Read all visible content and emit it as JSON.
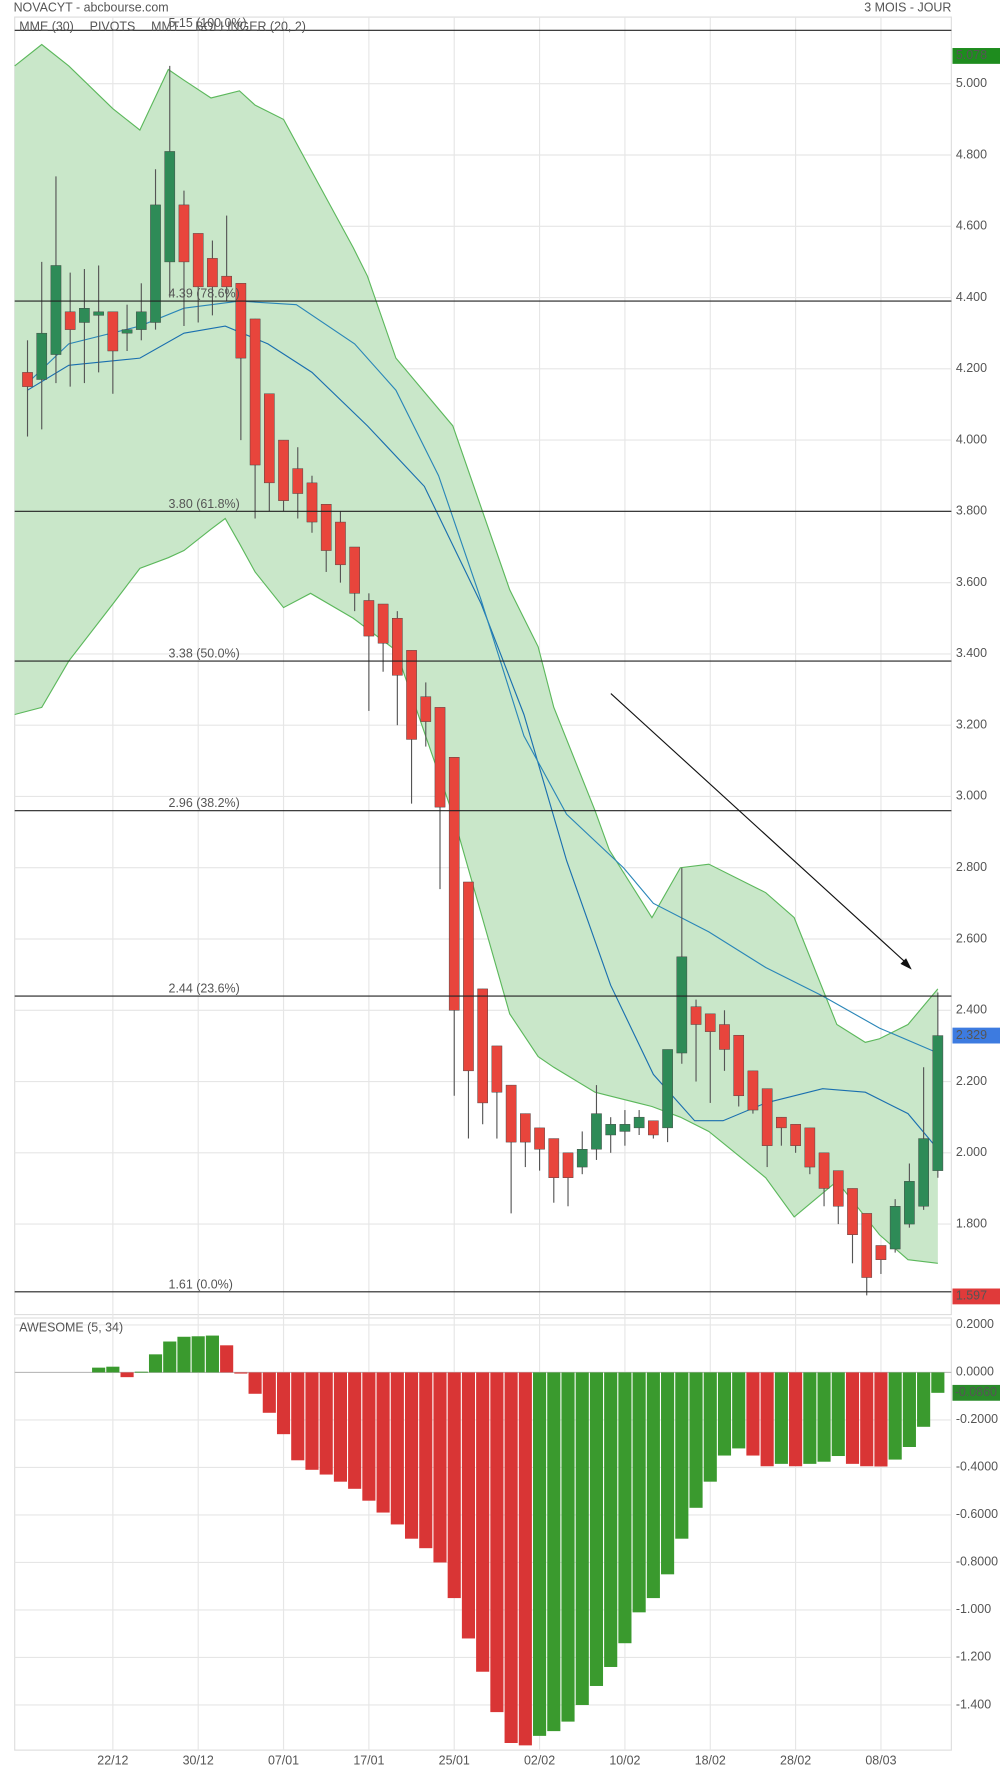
{
  "header": {
    "left": "NOVACYT - abcbourse.com",
    "right": "3 MOIS - JOUR"
  },
  "chart_data": [
    {
      "type": "candlestick",
      "xlim": [
        -0.9,
        64.95
      ],
      "categories": [
        null,
        null,
        null,
        null,
        null,
        null,
        "22/12",
        null,
        null,
        null,
        null,
        null,
        "30/12",
        null,
        null,
        null,
        null,
        null,
        "07/01",
        null,
        null,
        null,
        null,
        null,
        "17/01",
        null,
        null,
        null,
        null,
        null,
        "25/01",
        null,
        null,
        null,
        null,
        null,
        "02/02",
        null,
        null,
        null,
        null,
        null,
        "10/02",
        null,
        null,
        null,
        null,
        null,
        "18/02",
        null,
        null,
        null,
        null,
        null,
        "28/02",
        null,
        null,
        null,
        null,
        null,
        "08/03",
        null,
        null,
        null,
        null
      ],
      "open": [
        4.19,
        4.17,
        4.24,
        4.36,
        4.33,
        4.35,
        4.36,
        4.3,
        4.31,
        4.33,
        4.5,
        4.66,
        4.58,
        4.51,
        4.46,
        4.44,
        4.34,
        4.13,
        4.0,
        3.92,
        3.88,
        3.82,
        3.77,
        3.7,
        3.55,
        3.54,
        3.5,
        3.41,
        3.28,
        3.25,
        3.11,
        2.76,
        2.46,
        2.3,
        2.19,
        2.11,
        2.07,
        2.04,
        2.0,
        1.96,
        2.01,
        2.05,
        2.06,
        2.07,
        2.09,
        2.07,
        2.28,
        2.41,
        2.39,
        2.36,
        2.33,
        2.23,
        2.18,
        2.1,
        2.08,
        2.07,
        2.0,
        1.95,
        1.9,
        1.83,
        1.74,
        1.73,
        1.8,
        1.85,
        1.95
      ],
      "high": [
        4.28,
        4.5,
        4.74,
        4.47,
        4.48,
        4.49,
        4.36,
        4.38,
        4.44,
        4.76,
        5.05,
        4.7,
        4.58,
        4.56,
        4.63,
        4.44,
        4.34,
        4.13,
        4.0,
        3.98,
        3.9,
        3.82,
        3.8,
        3.7,
        3.57,
        3.54,
        3.52,
        3.41,
        3.32,
        3.25,
        3.11,
        2.76,
        2.46,
        2.3,
        2.19,
        2.11,
        2.07,
        2.04,
        2.0,
        2.06,
        2.19,
        2.1,
        2.12,
        2.12,
        2.09,
        2.29,
        2.8,
        2.43,
        2.39,
        2.4,
        2.33,
        2.23,
        2.18,
        2.1,
        2.08,
        2.07,
        2.0,
        1.95,
        1.9,
        1.83,
        1.74,
        1.87,
        1.97,
        2.24,
        2.45
      ],
      "low": [
        4.01,
        4.03,
        4.16,
        4.15,
        4.16,
        4.19,
        4.13,
        4.25,
        4.28,
        4.31,
        4.4,
        4.32,
        4.33,
        4.35,
        4.39,
        4.0,
        3.78,
        3.8,
        3.8,
        3.78,
        3.74,
        3.63,
        3.6,
        3.52,
        3.24,
        3.35,
        3.2,
        2.98,
        3.14,
        2.74,
        2.16,
        2.04,
        2.08,
        2.04,
        1.83,
        1.96,
        1.95,
        1.86,
        1.85,
        1.94,
        1.98,
        2.0,
        2.02,
        2.05,
        2.04,
        2.03,
        2.25,
        2.2,
        2.14,
        2.23,
        2.13,
        2.11,
        1.96,
        2.02,
        2.0,
        1.94,
        1.85,
        1.8,
        1.69,
        1.6,
        1.66,
        1.72,
        1.79,
        1.84,
        1.93
      ],
      "close": [
        4.15,
        4.3,
        4.49,
        4.31,
        4.37,
        4.36,
        4.25,
        4.31,
        4.36,
        4.66,
        4.81,
        4.5,
        4.43,
        4.43,
        4.43,
        4.23,
        3.93,
        3.88,
        3.83,
        3.85,
        3.77,
        3.69,
        3.65,
        3.57,
        3.45,
        3.43,
        3.34,
        3.16,
        3.21,
        2.97,
        2.4,
        2.23,
        2.14,
        2.17,
        2.03,
        2.03,
        2.01,
        1.93,
        1.93,
        2.01,
        2.11,
        2.08,
        2.08,
        2.1,
        2.05,
        2.29,
        2.55,
        2.36,
        2.34,
        2.29,
        2.16,
        2.12,
        2.02,
        2.07,
        2.02,
        1.96,
        1.9,
        1.85,
        1.77,
        1.65,
        1.7,
        1.85,
        1.92,
        2.04,
        2.329
      ],
      "up_color": "#2e8b57",
      "down_color": "#e8453c",
      "bands": {
        "name": "BOLLINGER (20, 2)",
        "color": "#5cb85c",
        "fill": "#c9e7c9",
        "x": [
          -0.9,
          1.0,
          2.9,
          6.0,
          7.9,
          9.9,
          11.0,
          12.9,
          13.9,
          14.9,
          16.0,
          18.0,
          19.9,
          22.9,
          23.9,
          25.9,
          29.9,
          33.9,
          35.9,
          37.0,
          39.9,
          40.9,
          43.9,
          45.9,
          47.9,
          51.9,
          53.9,
          56.9,
          58.9,
          59.9,
          61.9,
          64.0
        ],
        "upper": [
          5.05,
          5.11,
          5.05,
          4.93,
          4.87,
          5.04,
          5.01,
          4.96,
          4.97,
          4.98,
          4.94,
          4.9,
          4.76,
          4.54,
          4.46,
          4.23,
          4.04,
          3.58,
          3.42,
          3.25,
          2.96,
          2.85,
          2.66,
          2.8,
          2.81,
          2.73,
          2.66,
          2.36,
          2.31,
          2.32,
          2.36,
          2.46
        ],
        "lower": [
          3.23,
          3.25,
          3.38,
          3.54,
          3.64,
          3.67,
          3.69,
          3.75,
          3.78,
          3.71,
          3.63,
          3.53,
          3.57,
          3.5,
          3.47,
          3.41,
          2.95,
          2.39,
          2.27,
          2.24,
          2.17,
          2.16,
          2.13,
          2.1,
          2.06,
          1.93,
          1.82,
          1.92,
          1.82,
          1.77,
          1.7,
          1.69
        ]
      },
      "series": [
        {
          "name": "MME (30)",
          "color": "#1a6faf",
          "x": [
            0,
            2.9,
            7.9,
            11.0,
            13.9,
            16.9,
            20.0,
            23.9,
            27.9,
            31.9,
            34.9,
            37.9,
            41.0,
            44.0,
            46.9,
            48.9,
            51.9,
            55.9,
            58.9,
            61.9,
            64.0
          ],
          "values": [
            4.14,
            4.21,
            4.23,
            4.3,
            4.32,
            4.27,
            4.19,
            4.04,
            3.87,
            3.54,
            3.23,
            2.82,
            2.47,
            2.22,
            2.09,
            2.09,
            2.14,
            2.18,
            2.17,
            2.11,
            2.01
          ]
        },
        {
          "name": "MMT",
          "color": "#2a86b8",
          "x": [
            0,
            2.9,
            7.9,
            11.0,
            14.9,
            18.9,
            23.0,
            25.9,
            28.9,
            31.9,
            34.9,
            37.9,
            41.9,
            44.0,
            47.9,
            51.9,
            55.9,
            59.9,
            64.0
          ],
          "values": [
            4.16,
            4.27,
            4.32,
            4.37,
            4.39,
            4.38,
            4.27,
            4.14,
            3.9,
            3.55,
            3.17,
            2.95,
            2.8,
            2.7,
            2.62,
            2.52,
            2.44,
            2.35,
            2.28
          ]
        }
      ],
      "pivots": {
        "name": "PIVOTS",
        "color": "#222222",
        "levels": [
          {
            "value": 5.15,
            "label": "5.15 (100.0%)"
          },
          {
            "value": 4.39,
            "label": "4.39 (78.6%)"
          },
          {
            "value": 3.8,
            "label": "3.80 (61.8%)"
          },
          {
            "value": 3.38,
            "label": "3.38 (50.0%)"
          },
          {
            "value": 2.96,
            "label": "2.96 (38.2%)"
          },
          {
            "value": 2.44,
            "label": "2.44 (23.6%)"
          },
          {
            "value": 1.61,
            "label": "1.61 (0.0%)"
          }
        ]
      },
      "price_badges": [
        {
          "value": 5.078,
          "color": "#1e8c1e"
        },
        {
          "value": 2.329,
          "color": "#3d7be0"
        },
        {
          "value": 1.597,
          "color": "#e03a3a"
        }
      ],
      "ylim": [
        1.546,
        5.187
      ],
      "yticks": [
        {
          "value": 1.8,
          "label": "1.800"
        },
        {
          "value": 2,
          "label": "2.000"
        },
        {
          "value": 2.2,
          "label": "2.200"
        },
        {
          "value": 2.4,
          "label": "2.400"
        },
        {
          "value": 2.6,
          "label": "2.600"
        },
        {
          "value": 2.8,
          "label": "2.800"
        },
        {
          "value": 3,
          "label": "3.000"
        },
        {
          "value": 3.2,
          "label": "3.200"
        },
        {
          "value": 3.4,
          "label": "3.400"
        },
        {
          "value": 3.6,
          "label": "3.600"
        },
        {
          "value": 3.8,
          "label": "3.800"
        },
        {
          "value": 4,
          "label": "4.000"
        },
        {
          "value": 4.2,
          "label": "4.200"
        },
        {
          "value": 4.4,
          "label": "4.400"
        },
        {
          "value": 4.6,
          "label": "4.600"
        },
        {
          "value": 4.8,
          "label": "4.800"
        },
        {
          "value": 5,
          "label": "5.000"
        }
      ],
      "grid": true
    },
    {
      "type": "oscillator",
      "title": "AWESOME (5, 34)",
      "title_color": "#3a9a2e",
      "xlim": [
        -0.9,
        64.95
      ],
      "values": [
        null,
        null,
        null,
        null,
        null,
        0.02,
        0.024,
        -0.02,
        0.003,
        0.076,
        0.13,
        0.15,
        0.152,
        0.155,
        0.114,
        -0.005,
        -0.09,
        -0.17,
        -0.26,
        -0.37,
        -0.41,
        -0.43,
        -0.46,
        -0.49,
        -0.54,
        -0.59,
        -0.64,
        -0.7,
        -0.74,
        -0.8,
        -0.95,
        -1.12,
        -1.26,
        -1.43,
        -1.56,
        -1.57,
        -1.53,
        -1.51,
        -1.47,
        -1.4,
        -1.32,
        -1.24,
        -1.14,
        -1.01,
        -0.95,
        -0.85,
        -0.7,
        -0.57,
        -0.46,
        -0.35,
        -0.32,
        -0.35,
        -0.395,
        -0.385,
        -0.395,
        -0.385,
        -0.376,
        -0.352,
        -0.385,
        -0.395,
        -0.396,
        -0.367,
        -0.314,
        -0.229,
        -0.086
      ],
      "up_color": "#3a9a2e",
      "down_color": "#d93535",
      "badge": {
        "value": -0.086,
        "label": "-0.0860",
        "color": "#2a8a2a"
      },
      "ylim": [
        -1.59,
        0.229
      ],
      "yticks": [
        {
          "value": 0.2,
          "label": "0.2000"
        },
        {
          "value": 0,
          "label": "0.0000"
        },
        {
          "value": -0.2,
          "label": "-0.2000"
        },
        {
          "value": -0.4,
          "label": "-0.4000"
        },
        {
          "value": -0.6,
          "label": "-0.6000"
        },
        {
          "value": -0.8,
          "label": "-0.8000"
        },
        {
          "value": -1,
          "label": "-1.000"
        },
        {
          "value": -1.2,
          "label": "-1.200"
        },
        {
          "value": -1.4,
          "label": "-1.400"
        }
      ],
      "grid": true
    }
  ]
}
